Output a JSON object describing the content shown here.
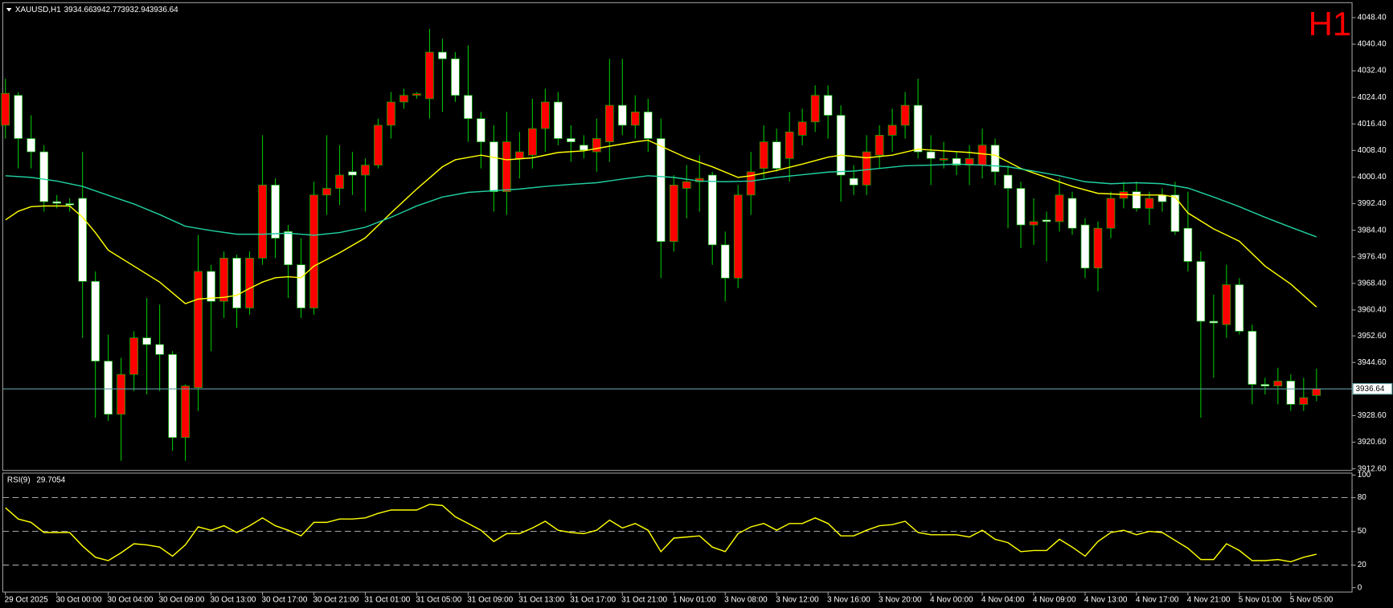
{
  "chart_data": {
    "type": "candlestick",
    "title": "XAUUSD,H1",
    "timeframe_badge": "H1",
    "categories": [
      "29 Oct 2025",
      null,
      null,
      null,
      "30 Oct 00:00",
      null,
      null,
      null,
      "30 Oct 04:00",
      null,
      null,
      null,
      "30 Oct 09:00",
      null,
      null,
      null,
      "30 Oct 13:00",
      null,
      null,
      null,
      "30 Oct 17:00",
      null,
      null,
      null,
      "30 Oct 21:00",
      null,
      null,
      null,
      "31 Oct 01:00",
      null,
      null,
      null,
      "31 Oct 05:00",
      null,
      null,
      null,
      "31 Oct 09:00",
      null,
      null,
      null,
      "31 Oct 13:00",
      null,
      null,
      null,
      "31 Oct 17:00",
      null,
      null,
      null,
      "31 Oct 21:00",
      null,
      null,
      null,
      "1 Nov 01:00",
      null,
      null,
      null,
      "3 Nov 08:00",
      null,
      null,
      null,
      "3 Nov 12:00",
      null,
      null,
      null,
      "3 Nov 16:00",
      null,
      null,
      null,
      "3 Nov 20:00",
      null,
      null,
      null,
      "4 Nov 00:00",
      null,
      null,
      null,
      "4 Nov 04:00",
      null,
      null,
      null,
      "4 Nov 09:00",
      null,
      null,
      null,
      "4 Nov 13:00",
      null,
      null,
      null,
      "4 Nov 17:00",
      null,
      null,
      null,
      "4 Nov 21:00",
      null,
      null,
      null,
      "5 Nov 01:00",
      null,
      null,
      null,
      "5 Nov 05:00",
      null,
      null
    ],
    "open": [
      4016,
      4025,
      4012,
      4008,
      3993,
      3992.4,
      3994,
      3969,
      3945,
      3929,
      3941,
      3952,
      3950,
      3947,
      3922,
      3937,
      3972,
      3963,
      3976,
      3961,
      3976,
      3998,
      3984,
      3974,
      3961,
      3995,
      3997,
      4002,
      4001,
      4004,
      4016,
      4023,
      4025,
      4024,
      4038,
      4036,
      4025,
      4018,
      4011,
      3996,
      4006,
      4007,
      4015,
      4023,
      4012,
      4010,
      4008,
      4011,
      4022,
      4016,
      4020,
      4012,
      3981,
      3997,
      3999,
      4001,
      3980,
      3970,
      3995,
      4003,
      4011,
      4006,
      4013,
      4017,
      4025,
      4019,
      4000,
      3998,
      4007,
      4013,
      4016,
      4022,
      4008,
      4005.5,
      4006,
      4004,
      4004,
      4010,
      4001,
      3997,
      3986,
      3987.5,
      3987,
      3994,
      3986,
      3973,
      3985,
      3994,
      3996,
      3991,
      3995,
      3995,
      3985,
      3975,
      3957,
      3956,
      3968,
      3954,
      3938,
      3937.5,
      3939,
      3932,
      3934.66
    ],
    "high": [
      4030,
      4026,
      4019,
      4010,
      3995,
      3994,
      4008,
      3972,
      3953,
      3946,
      3954,
      3964,
      3962,
      3948,
      3938,
      3983,
      3974,
      3978,
      3977,
      3978,
      4013,
      4000,
      3986,
      3982,
      3999,
      4013,
      4010,
      4008,
      4006,
      4018,
      4026,
      4027,
      4026,
      4045,
      4042,
      4038,
      4040,
      4020,
      4016,
      4020,
      4014,
      4024,
      4027,
      4026,
      4016,
      4013,
      4018,
      4036,
      4036,
      4025,
      4024,
      4018,
      4001,
      4004,
      4007,
      4002,
      3984,
      3998,
      4008,
      4016,
      4015,
      4020,
      4021,
      4028,
      4028,
      4022,
      4004,
      4013,
      4016,
      4021,
      4026,
      4030,
      4013,
      4011,
      4008,
      4010,
      4015,
      4012,
      4004,
      3999,
      3994,
      3990,
      4000,
      3996,
      3988,
      3987,
      3996,
      3999,
      3999,
      3996,
      3997,
      3999,
      3996,
      3978,
      3965,
      3974,
      3970,
      3956,
      3940,
      3943,
      3941,
      3940,
      3942.77
    ],
    "low": [
      4012,
      4003,
      4003,
      3990,
      3991,
      3990,
      3952,
      3928,
      3927,
      3915,
      3936,
      3935,
      3936,
      3918,
      3915,
      3930,
      3948,
      3958,
      3955,
      3959,
      3974,
      3976,
      3964,
      3958,
      3959,
      3989,
      3992,
      3995,
      3990,
      4003,
      4012,
      4021,
      4024,
      4018,
      4020,
      4023,
      4011,
      4003,
      3990,
      3989,
      4000,
      4003,
      4008,
      4010,
      4005,
      4006,
      4002,
      4005,
      4013,
      4012,
      4008,
      3970,
      3978,
      3988,
      3990,
      3974,
      3963,
      3967,
      3989,
      4000,
      4002,
      3999,
      4010,
      4014,
      4012,
      3993,
      3995,
      3995,
      4003,
      4008,
      4012,
      4006,
      3998,
      4003,
      4001,
      3998,
      4000,
      3998,
      3985,
      3979,
      3980,
      3975,
      3984,
      3983,
      3970,
      3966,
      3982,
      3991,
      3990,
      3986,
      3990,
      3983,
      3972,
      3928,
      3940,
      3952,
      3953,
      3932,
      3935,
      3932,
      3930,
      3930,
      3932.94
    ],
    "close": [
      4025.6,
      4012,
      4008,
      3993,
      3992.5,
      3992,
      3969,
      3945,
      3929,
      3941,
      3952,
      3950,
      3947,
      3922,
      3937.5,
      3972,
      3963,
      3976,
      3961,
      3976,
      3998,
      3982,
      3974,
      3961,
      3995,
      3997,
      4001,
      4001,
      4004,
      4016,
      4023,
      4025,
      4025.5,
      4038,
      4036,
      4025,
      4018,
      4011,
      3996,
      4011,
      4008,
      4015,
      4023,
      4012,
      4011,
      4008.5,
      4012,
      4022,
      4016,
      4020,
      4012,
      3981,
      3998,
      3999,
      4000,
      3980,
      3970,
      3995,
      4002,
      4011,
      4003,
      4014,
      4017,
      4025,
      4019,
      4001,
      3998,
      4008,
      4013,
      4016,
      4022,
      4008,
      4006,
      4006,
      4004,
      4006,
      4010,
      4002,
      3997,
      3986,
      3987,
      3987,
      3995,
      3985,
      3973,
      3985,
      3994,
      3996,
      3991,
      3994,
      3993,
      3984,
      3975,
      3957,
      3956.5,
      3968,
      3954,
      3938,
      3937.5,
      3939,
      3932,
      3934,
      3936.64
    ],
    "bull_color": "#ff0000",
    "bear_color": "#ffffff",
    "wick_color": "#00c000",
    "ylim": [
      3912.1,
      4052.9
    ],
    "yticks": [
      {
        "value": 4048.4,
        "label": "4048.40"
      },
      {
        "value": 4040.4,
        "label": "4040.40"
      },
      {
        "value": 4032.4,
        "label": "4032.40"
      },
      {
        "value": 4024.4,
        "label": "4024.40"
      },
      {
        "value": 4016.4,
        "label": "4016.40"
      },
      {
        "value": 4008.4,
        "label": "4008.40"
      },
      {
        "value": 4000.4,
        "label": "4000.40"
      },
      {
        "value": 3992.4,
        "label": "3992.40"
      },
      {
        "value": 3984.4,
        "label": "3984.40"
      },
      {
        "value": 3976.4,
        "label": "3976.40"
      },
      {
        "value": 3968.4,
        "label": "3968.40"
      },
      {
        "value": 3960.4,
        "label": "3960.40"
      },
      {
        "value": 3952.6,
        "label": "3952.60"
      },
      {
        "value": 3944.6,
        "label": "3944.60"
      },
      {
        "value": 3928.6,
        "label": "3928.60"
      },
      {
        "value": 3920.6,
        "label": "3920.60"
      },
      {
        "value": 3912.6,
        "label": "3912.60"
      }
    ],
    "current_price_color": "#5f9ea0",
    "ma": [
      {
        "color": "#ffff00",
        "x": [
          0,
          1,
          2,
          3,
          5,
          6,
          7,
          8,
          10,
          12,
          14,
          15,
          17,
          18,
          19,
          20,
          21,
          22,
          23,
          24,
          26,
          28,
          30,
          32,
          34,
          35,
          37,
          39,
          41,
          43,
          45,
          47,
          49,
          50,
          51,
          53,
          55,
          57,
          58,
          60,
          62,
          64,
          65,
          67,
          69,
          71,
          73,
          75,
          77,
          79,
          81,
          83,
          85,
          88,
          90,
          91,
          92,
          94,
          96,
          98,
          100,
          102
        ],
        "values": [
          3987.5,
          3990.1,
          3991.5,
          3991.7,
          3991.7,
          3988.3,
          3983.7,
          3978.4,
          3973.6,
          3968.8,
          3962.3,
          3963.7,
          3964.2,
          3964.8,
          3966.9,
          3968.8,
          3970.1,
          3970.4,
          3970.1,
          3973.6,
          3977.6,
          3982.1,
          3989.6,
          3996.8,
          4003.5,
          4005.6,
          4007,
          4005.6,
          4006.2,
          4007.8,
          4008.3,
          4009.7,
          4011,
          4011.5,
          4009.7,
          4006.2,
          4003.5,
          4000.3,
          4000.8,
          4002.4,
          4004.3,
          4006.4,
          4007,
          4006.2,
          4007,
          4008.8,
          4008.3,
          4007.8,
          4007,
          4003,
          4000.3,
          3997.6,
          3995.5,
          3995,
          3995,
          3994.4,
          3989.6,
          3984.8,
          3981.1,
          3973.6,
          3968.2,
          3961.3
        ]
      },
      {
        "color": "#20d0a0",
        "x": [
          0,
          2,
          4,
          6,
          8,
          10,
          12,
          14,
          16,
          18,
          20,
          22,
          24,
          26,
          28,
          30,
          32,
          34,
          36,
          38,
          40,
          42,
          44,
          46,
          48,
          50,
          52,
          54,
          56,
          58,
          60,
          62,
          64,
          66,
          68,
          70,
          72,
          74,
          76,
          78,
          80,
          82,
          84,
          86,
          88,
          90,
          92,
          94,
          96,
          98,
          100,
          102
        ],
        "values": [
          4000.8,
          4000.3,
          3999.2,
          3997.6,
          3994.9,
          3992.3,
          3989.1,
          3985.6,
          3984.3,
          3983.2,
          3983.2,
          3983.5,
          3982.9,
          3983.7,
          3985.3,
          3988.3,
          3991.7,
          3994.4,
          3995.8,
          3996.3,
          3996.8,
          3997.6,
          3998.2,
          3998.7,
          3999.8,
          4000.8,
          4000.3,
          3999.2,
          3999,
          3999.2,
          4000.3,
          4001.1,
          4001.9,
          4002.2,
          4003,
          4003.8,
          4004,
          4004.3,
          4004,
          4003.5,
          4002.2,
          4000.8,
          3999,
          3998.4,
          3998.7,
          3998.4,
          3997.1,
          3994.4,
          3991.5,
          3988.3,
          3985.3,
          3982.4
        ]
      }
    ],
    "rsi": {
      "label": "RSI(9)",
      "color": "#ffff00",
      "ylim": [
        -3.9,
        101.8
      ],
      "yticks": [
        100,
        80,
        50,
        20,
        0
      ],
      "levels": [
        80,
        50,
        20
      ],
      "values": [
        71,
        61,
        58,
        49,
        49,
        49,
        37,
        27,
        24,
        31,
        39,
        38,
        36,
        28,
        38,
        54,
        51,
        55,
        49,
        55,
        62,
        55,
        51,
        46,
        58,
        58,
        61,
        61,
        62,
        66,
        69,
        69,
        69,
        74,
        73,
        63,
        57,
        51,
        41,
        48,
        48,
        53,
        59,
        51,
        49,
        48,
        51,
        60,
        53,
        57,
        51,
        32,
        44,
        45,
        46,
        36,
        32,
        48,
        54,
        57,
        51,
        57,
        57,
        62,
        57,
        46,
        46,
        51,
        55,
        56,
        59,
        49,
        47,
        47,
        47,
        45,
        51,
        43,
        40,
        32,
        33,
        33,
        43,
        36,
        28,
        41,
        49,
        51,
        47,
        50,
        49,
        42,
        35,
        25,
        25,
        39,
        33,
        24,
        24,
        25,
        23,
        27,
        29.7054
      ]
    }
  }
}
